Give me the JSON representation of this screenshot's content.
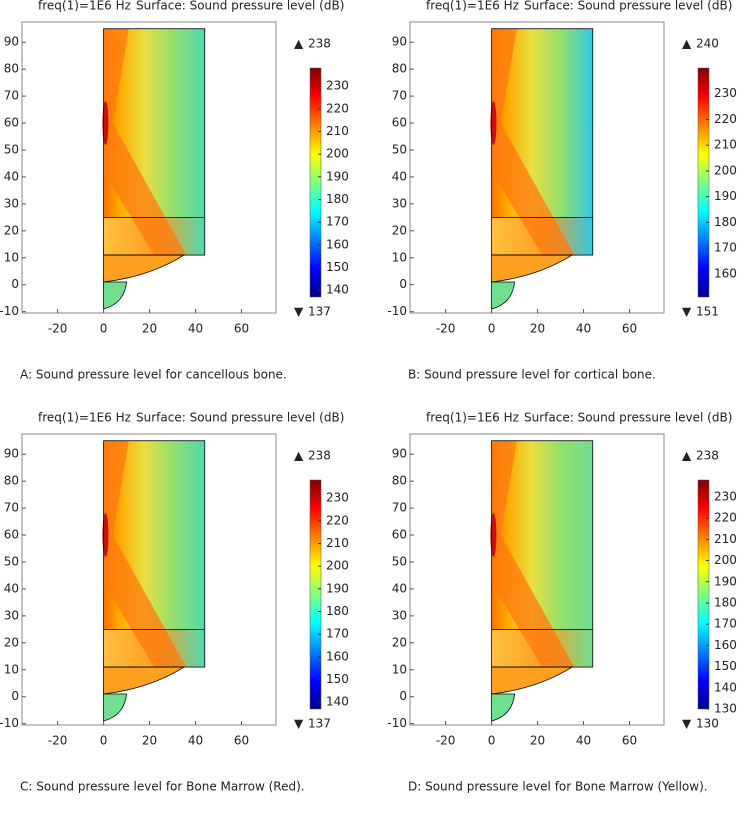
{
  "chart_data": [
    {
      "type": "surface",
      "title": "freq(1)=1E6 Hz",
      "subtitle": "Surface: Sound pressure level (dB)",
      "caption": "A: Sound pressure level for cancellous bone.",
      "xlim": [
        -35.5,
        75
      ],
      "xticks": [
        -20,
        0,
        20,
        40,
        60
      ],
      "ylim": [
        -10.5,
        97.5
      ],
      "yticks": [
        -10,
        0,
        10,
        20,
        30,
        40,
        50,
        60,
        70,
        80,
        90
      ],
      "range": {
        "max": 238,
        "min": 137
      },
      "colorbar_ticks": [
        140,
        150,
        160,
        170,
        180,
        190,
        200,
        210,
        220,
        230
      ]
    },
    {
      "type": "surface",
      "title": "freq(1)=1E6 Hz",
      "subtitle": "Surface: Sound pressure level (dB)",
      "caption": "B:  Sound pressure level for cortical bone.",
      "xlim": [
        -35.5,
        75
      ],
      "xticks": [
        -20,
        0,
        20,
        40,
        60
      ],
      "ylim": [
        -10.5,
        97.5
      ],
      "yticks": [
        -10,
        0,
        10,
        20,
        30,
        40,
        50,
        60,
        70,
        80,
        90
      ],
      "range": {
        "max": 240,
        "min": 151
      },
      "colorbar_ticks": [
        160,
        170,
        180,
        190,
        200,
        210,
        220,
        230
      ]
    },
    {
      "type": "surface",
      "title": "freq(1)=1E6 Hz",
      "subtitle": "Surface: Sound pressure level (dB)",
      "caption": "C: Sound pressure level for Bone Marrow (Red).",
      "xlim": [
        -35.5,
        75
      ],
      "xticks": [
        -20,
        0,
        20,
        40,
        60
      ],
      "ylim": [
        -10.5,
        97.5
      ],
      "yticks": [
        -10,
        0,
        10,
        20,
        30,
        40,
        50,
        60,
        70,
        80,
        90
      ],
      "range": {
        "max": 238,
        "min": 137
      },
      "colorbar_ticks": [
        140,
        150,
        160,
        170,
        180,
        190,
        200,
        210,
        220,
        230
      ]
    },
    {
      "type": "surface",
      "title": "freq(1)=1E6 Hz",
      "subtitle": "Surface: Sound pressure level (dB)",
      "caption": "D: Sound pressure level for Bone Marrow (Yellow).",
      "xlim": [
        -35.5,
        75
      ],
      "xticks": [
        -20,
        0,
        20,
        40,
        60
      ],
      "ylim": [
        -10.5,
        97.5
      ],
      "yticks": [
        -10,
        0,
        10,
        20,
        30,
        40,
        50,
        60,
        70,
        80,
        90
      ],
      "range": {
        "max": 238,
        "min": 130
      },
      "colorbar_ticks": [
        130,
        140,
        150,
        160,
        170,
        180,
        190,
        200,
        210,
        220,
        230
      ]
    }
  ]
}
